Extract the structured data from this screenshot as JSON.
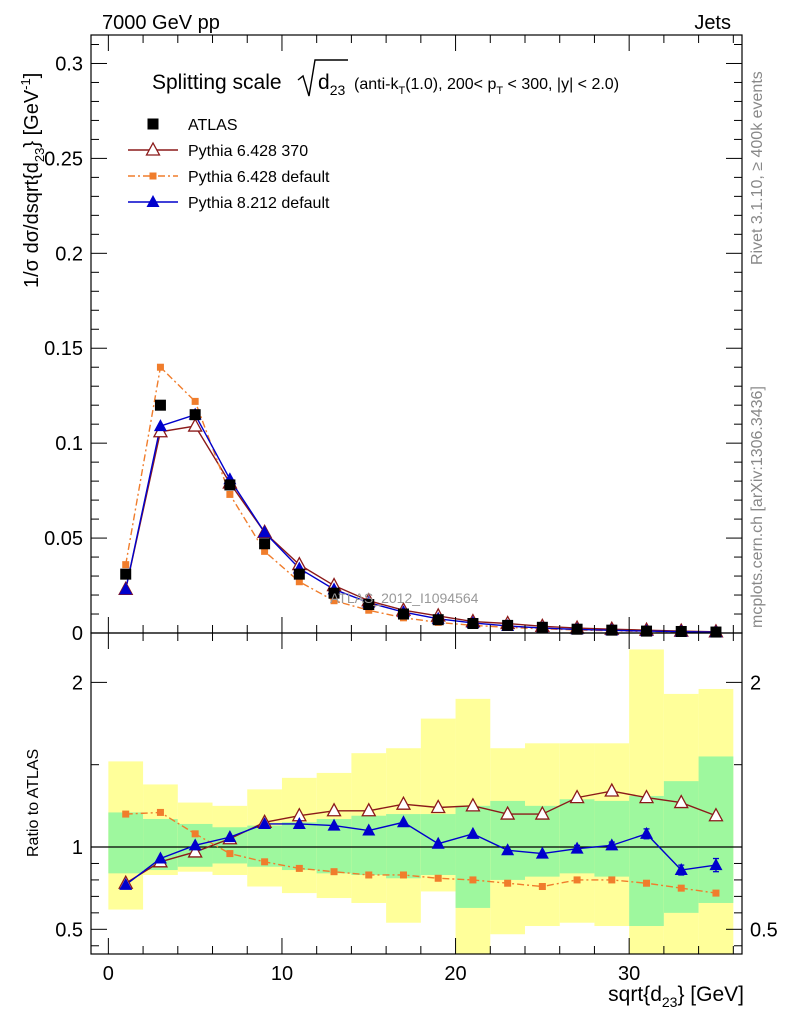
{
  "header": {
    "left": "7000 GeV pp",
    "right": "Jets"
  },
  "side": {
    "rivet": "Rivet 3.1.10, ≥ 400k events",
    "mcplots": "mcplots.cern.ch [arXiv:1306.3436]"
  },
  "chart_data": [
    {
      "type": "scatter",
      "panel": "main",
      "title": "Splitting scale √d23 (anti-kT(1.0), 200< pT < 300, |y| < 2.0)",
      "ylabel": "1/σ dσ/dsqrt{d23} [GeV⁻¹]",
      "watermark": "ATLAS_2012_I1094564",
      "xlim": [
        -1,
        36.5
      ],
      "ylim": [
        0,
        0.315
      ],
      "yticks": [
        0,
        0.05,
        0.1,
        0.15,
        0.2,
        0.25,
        0.3
      ],
      "ytick_labels": [
        "0",
        "0.05",
        "0.1",
        "0.15",
        "0.2",
        "0.25",
        "0.3"
      ],
      "legend_position": "top-left",
      "x": [
        1,
        3,
        5,
        7,
        9,
        11,
        13,
        15,
        17,
        19,
        21,
        23,
        25,
        27,
        29,
        31,
        33,
        35
      ],
      "series": [
        {
          "name": "ATLAS",
          "color": "#000000",
          "marker": "square",
          "values": [
            0.031,
            0.12,
            0.115,
            0.078,
            0.047,
            0.031,
            0.021,
            0.015,
            0.01,
            0.007,
            0.005,
            0.004,
            0.003,
            0.002,
            0.0015,
            0.001,
            0.0008,
            0.0005
          ]
        },
        {
          "name": "Pythia 6.428 370",
          "color": "#8b1a1a",
          "marker": "triangle-open",
          "values": [
            0.023,
            0.106,
            0.109,
            0.079,
            0.053,
            0.036,
            0.025,
            0.017,
            0.012,
            0.009,
            0.006,
            0.005,
            0.0035,
            0.0026,
            0.002,
            0.0015,
            0.001,
            0.0006
          ]
        },
        {
          "name": "Pythia 6.428 default",
          "color": "#f07d2c",
          "marker": "square-small",
          "dash": true,
          "values": [
            0.036,
            0.14,
            0.122,
            0.073,
            0.043,
            0.027,
            0.017,
            0.012,
            0.008,
            0.0056,
            0.004,
            0.003,
            0.0022,
            0.0016,
            0.0012,
            0.0008,
            0.0006,
            0.0004
          ]
        },
        {
          "name": "Pythia 8.212 default",
          "color": "#0000cc",
          "marker": "triangle-filled",
          "values": [
            0.023,
            0.109,
            0.115,
            0.081,
            0.053,
            0.034,
            0.023,
            0.016,
            0.011,
            0.0075,
            0.0053,
            0.0037,
            0.0026,
            0.0019,
            0.0014,
            0.001,
            0.0007,
            0.0004
          ]
        }
      ]
    },
    {
      "type": "scatter",
      "panel": "ratio",
      "ylabel": "Ratio to ATLAS",
      "xlabel": "sqrt{d23} [GeV]",
      "xlim": [
        -1,
        36.5
      ],
      "ylim": [
        0.35,
        2.3
      ],
      "xticks": [
        0,
        10,
        20,
        30
      ],
      "xtick_labels": [
        "0",
        "10",
        "20",
        "30"
      ],
      "yticks": [
        0.5,
        1,
        2
      ],
      "ytick_labels": [
        "0.5",
        "1",
        "2"
      ],
      "x": [
        1,
        3,
        5,
        7,
        9,
        11,
        13,
        15,
        17,
        19,
        21,
        23,
        25,
        27,
        29,
        31,
        33,
        35
      ],
      "band_edges": [
        0,
        2,
        4,
        6,
        8,
        10,
        12,
        14,
        16,
        18,
        20,
        22,
        24,
        26,
        28,
        30,
        32,
        34,
        36
      ],
      "band_stat": {
        "lo": [
          0.84,
          0.86,
          0.88,
          0.9,
          0.88,
          0.86,
          0.84,
          0.83,
          0.81,
          0.83,
          0.63,
          0.8,
          0.82,
          0.84,
          0.82,
          0.52,
          0.6,
          0.66
        ],
        "hi": [
          1.21,
          1.17,
          1.14,
          1.12,
          1.13,
          1.15,
          1.17,
          1.19,
          1.2,
          1.2,
          1.25,
          1.28,
          1.25,
          1.29,
          1.28,
          1.31,
          1.4,
          1.55
        ]
      },
      "band_syst": {
        "lo": [
          0.62,
          0.83,
          0.85,
          0.83,
          0.76,
          0.72,
          0.69,
          0.66,
          0.54,
          0.73,
          0.35,
          0.47,
          0.52,
          0.54,
          0.52,
          0.35,
          0.35,
          0.35
        ],
        "hi": [
          1.52,
          1.38,
          1.27,
          1.25,
          1.35,
          1.42,
          1.45,
          1.57,
          1.6,
          1.78,
          1.9,
          1.6,
          1.63,
          1.63,
          1.63,
          2.2,
          1.93,
          1.96
        ]
      },
      "series": [
        {
          "name": "Pythia 6.428 370",
          "color": "#8b1a1a",
          "marker": "triangle-open",
          "values": [
            0.78,
            0.91,
            0.97,
            1.05,
            1.15,
            1.19,
            1.22,
            1.22,
            1.26,
            1.24,
            1.25,
            1.2,
            1.2,
            1.3,
            1.34,
            1.3,
            1.27,
            1.19
          ]
        },
        {
          "name": "Pythia 6.428 default",
          "color": "#f07d2c",
          "marker": "square-small",
          "dash": true,
          "values": [
            1.2,
            1.21,
            1.08,
            0.96,
            0.91,
            0.87,
            0.85,
            0.83,
            0.83,
            0.81,
            0.8,
            0.78,
            0.76,
            0.8,
            0.8,
            0.78,
            0.75,
            0.72
          ]
        },
        {
          "name": "Pythia 8.212 default",
          "color": "#0000cc",
          "marker": "triangle-filled",
          "values": [
            0.77,
            0.93,
            1.01,
            1.06,
            1.14,
            1.14,
            1.13,
            1.1,
            1.15,
            1.02,
            1.08,
            0.98,
            0.96,
            0.99,
            1.01,
            1.08,
            0.86,
            0.89
          ],
          "errors": [
            0.01,
            0.01,
            0.01,
            0.01,
            0.01,
            0.01,
            0.01,
            0.01,
            0.01,
            0.01,
            0.01,
            0.01,
            0.01,
            0.02,
            0.02,
            0.03,
            0.03,
            0.04
          ]
        }
      ]
    }
  ]
}
